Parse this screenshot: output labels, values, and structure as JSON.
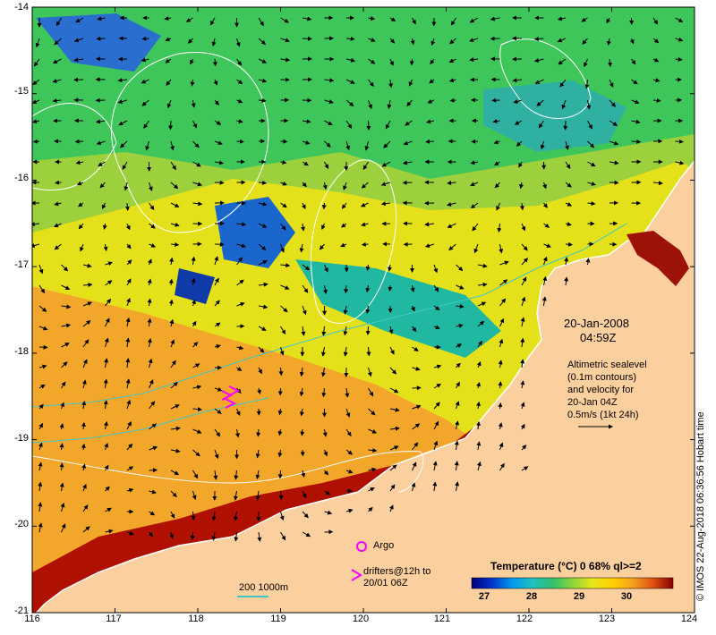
{
  "axes": {
    "x_ticks": [
      "116",
      "117",
      "118",
      "119",
      "120",
      "121",
      "122",
      "123",
      "124"
    ],
    "y_ticks": [
      "-14",
      "-15",
      "-16",
      "-17",
      "-18",
      "-19",
      "-20",
      "-21"
    ]
  },
  "timestamp": {
    "date": "20-Jan-2008",
    "time": "04:59Z"
  },
  "legend": {
    "lines": [
      "Altimetric sealevel",
      "(0.1m contours)",
      "and velocity for",
      "20-Jan 04Z",
      "0.5m/s (1kt 24h)"
    ]
  },
  "credit": "© IMOS 22-Aug-2018 06:36:56 Hobart time",
  "argo": {
    "label": "Argo"
  },
  "drifters": {
    "line1": "drifters@12h to",
    "line2": "20/01 06Z"
  },
  "scale_bar": {
    "label": "200  1000m"
  },
  "colorbar": {
    "title": "Temperature (°C) 0 68% ql>=2",
    "ticks": [
      "27",
      "28",
      "29",
      "30"
    ],
    "colors": [
      "#00007a",
      "#0033cc",
      "#0099ee",
      "#20c0c0",
      "#30c070",
      "#8cd63a",
      "#e6e61a",
      "#ffd000",
      "#f5a020",
      "#e05010",
      "#b80c00",
      "#8a0000"
    ]
  },
  "colors": {
    "land": "#fccf9e",
    "coast": "#ffffff",
    "contour": "#ffffff",
    "isobath": "#40c8c8"
  }
}
